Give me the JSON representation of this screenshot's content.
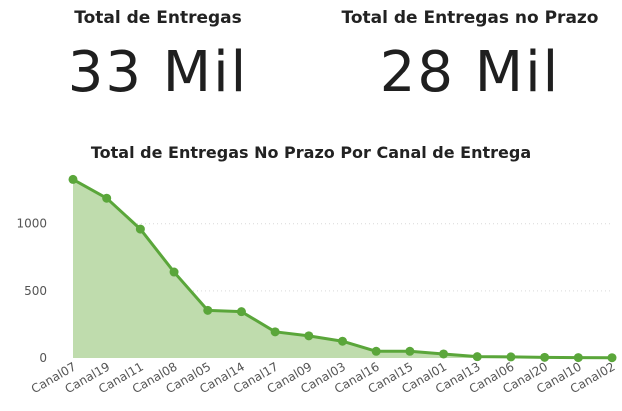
{
  "kpis": [
    {
      "label": "Total de Entregas",
      "value": "33 Mil"
    },
    {
      "label": "Total de Entregas no Prazo",
      "value": "28 Mil"
    }
  ],
  "chart_data": {
    "type": "area",
    "title": "Total de Entregas No Prazo Por Canal de Entrega",
    "xlabel": "",
    "ylabel": "",
    "categories": [
      "Canal07",
      "Canal19",
      "Canal11",
      "Canal08",
      "Canal05",
      "Canal14",
      "Canal17",
      "Canal09",
      "Canal03",
      "Canal16",
      "Canal15",
      "Canal01",
      "Canal13",
      "Canal06",
      "Canal20",
      "Canal10",
      "Canal02"
    ],
    "values": [
      1330,
      1190,
      960,
      640,
      355,
      345,
      195,
      165,
      125,
      50,
      50,
      30,
      10,
      8,
      5,
      3,
      2
    ],
    "ylim": [
      0,
      1400
    ],
    "yticks": [
      0,
      500,
      1000
    ],
    "grid": true,
    "colors": {
      "line": "#5aa63a",
      "fill": "#bfdcad",
      "grid": "#d9d9d9"
    }
  }
}
